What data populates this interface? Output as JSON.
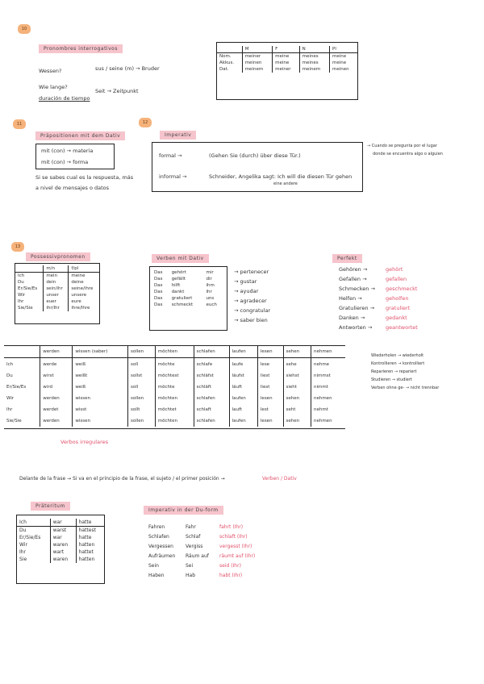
{
  "badges": [
    "10",
    "11",
    "12",
    "13"
  ],
  "interrogatives": {
    "heading": "Pronombres interrogativos",
    "q1": "Wessen?",
    "a1": "sus / seine (m) → Bruder",
    "q2": "Wie lange?",
    "q2_note": "duración de tiempo",
    "a2": "Seit → Zeitpunkt",
    "table": {
      "header": [
        "",
        "M",
        "F",
        "N",
        "Pl"
      ],
      "rows": [
        [
          "Nom.",
          "meiner",
          "meine",
          "meines",
          "meine"
        ],
        [
          "Akkus.",
          "meinen",
          "meine",
          "meines",
          "meine"
        ],
        [
          "Dat.",
          "meinem",
          "meiner",
          "meinem",
          "meinen"
        ]
      ]
    }
  },
  "dativ_prep": {
    "heading": "Präpositionen mit dem Dativ",
    "box": [
      "mit (con) → materia",
      "mit (con) → forma"
    ],
    "note": [
      "Si se sabes cual es la respuesta, más",
      "a nivel de mensajes o datos"
    ]
  },
  "imperativ": {
    "heading": "Imperativ",
    "formal_label": "formal →",
    "formal": "(Gehen Sie (durch) über diese Tür.)",
    "informal_label": "informal →",
    "informal": "Schneider, Angelika sagt: Ich will die diesen Tür gehen",
    "informal_note": "eine andere",
    "side": [
      "→ Cuando se pregunta por el lugar",
      "donde se encuentra algo o alguien"
    ]
  },
  "possessiv": {
    "heading": "Possessivpronomen",
    "table": {
      "header": [
        "",
        "m/n",
        "f/pl"
      ],
      "rows": [
        [
          "Ich",
          "mein",
          "meine"
        ],
        [
          "Du",
          "dein",
          "deine"
        ],
        [
          "Er/Sie/Es",
          "sein/ihr",
          "seine/ihre"
        ],
        [
          "Wir",
          "unser",
          "unsere"
        ],
        [
          "Ihr",
          "euer",
          "eure"
        ],
        [
          "Sie/Sie",
          "ihr/Ihr",
          "ihre/Ihre"
        ]
      ]
    }
  },
  "verben_dativ": {
    "heading": "Verben mit Dativ",
    "table": {
      "header": [],
      "rows": [
        [
          "Das",
          "gehört",
          "mir"
        ],
        [
          "Das",
          "gefällt",
          "dir"
        ],
        [
          "Das",
          "hilft",
          "ihm"
        ],
        [
          "Das",
          "dankt",
          "ihr"
        ],
        [
          "Das",
          "gratuliert",
          "uns"
        ],
        [
          "Das",
          "schmeckt",
          "euch"
        ]
      ]
    },
    "meanings": [
      "→ pertenecer",
      "→ gustar",
      "→ ayudar",
      "→ agradecer",
      "→ congratular",
      "→ saber bien"
    ]
  },
  "perfekt": {
    "heading": "Perfekt",
    "rows": [
      [
        "Gehören →",
        "gehört"
      ],
      [
        "Gefallen →",
        "gefallen"
      ],
      [
        "Schmecken →",
        "geschmeckt"
      ],
      [
        "Helfen →",
        "geholfen"
      ],
      [
        "Gratulieren →",
        "gratuliert"
      ],
      [
        "Danken →",
        "gedankt"
      ],
      [
        "Antworten →",
        "geantwortet"
      ]
    ]
  },
  "conjugation": {
    "header": [
      "",
      "werden",
      "wissen (saber)",
      "sollen",
      "möchten",
      "schlafen",
      "laufen",
      "lesen",
      "sehen",
      "nehmen"
    ],
    "rows": [
      [
        "Ich",
        "werde",
        "weiß",
        "soll",
        "möchte",
        "schlafe",
        "laufe",
        "lese",
        "sehe",
        "nehme"
      ],
      [
        "Du",
        "wirst",
        "weißt",
        "sollst",
        "möchtest",
        "schläfst",
        "läufst",
        "liest",
        "siehst",
        "nimmst"
      ],
      [
        "Er/Sie/Es",
        "wird",
        "weiß",
        "soll",
        "möchte",
        "schläft",
        "läuft",
        "liest",
        "sieht",
        "nimmt"
      ],
      [
        "Wir",
        "werden",
        "wissen",
        "sollen",
        "möchten",
        "schlafen",
        "laufen",
        "lesen",
        "sehen",
        "nehmen"
      ],
      [
        "Ihr",
        "werdet",
        "wisst",
        "sollt",
        "möchtet",
        "schlaft",
        "lauft",
        "lest",
        "seht",
        "nehmt"
      ],
      [
        "Sie/Sie",
        "werden",
        "wissen",
        "sollen",
        "möchten",
        "schlafen",
        "laufen",
        "lesen",
        "sehen",
        "nehmen"
      ]
    ],
    "note": "Verbos irregulares",
    "side": [
      "Wiederholen → wiederholt",
      "Kontrollieren → kontrolliert",
      "Reparieren → repariert",
      "Studieren → studiert",
      "Verben ohne ge- → nicht trennbar"
    ]
  },
  "rule": {
    "text": "Delante de la frase → Si va en el principio de la frase, el sujeto / el primer posición →",
    "highlight": "Verben / Dativ"
  },
  "praeteritum": {
    "heading": "Präteritum",
    "table": {
      "header": [],
      "rows": [
        [
          "Ich",
          "war",
          "hatte"
        ],
        [
          "Du",
          "warst",
          "hattest"
        ],
        [
          "Er/Sie/Es",
          "war",
          "hatte"
        ],
        [
          "Wir",
          "waren",
          "hatten"
        ],
        [
          "Ihr",
          "wart",
          "hattet"
        ],
        [
          "Sie",
          "waren",
          "hatten"
        ]
      ]
    }
  },
  "imperativ_du": {
    "heading": "Imperativ in der Du-form",
    "rows": [
      [
        "Fahren",
        "Fahr",
        "fahrt (Ihr)"
      ],
      [
        "Schlafen",
        "Schlaf",
        "schlaft (Ihr)"
      ],
      [
        "Vergessen",
        "Vergiss",
        "vergesst (Ihr)"
      ],
      [
        "Aufräumen",
        "Räum auf",
        "räumt auf (Ihr)"
      ],
      [
        "Sein",
        "Sei",
        "seid (Ihr)"
      ],
      [
        "Haben",
        "Hab",
        "habt (Ihr)"
      ]
    ]
  }
}
